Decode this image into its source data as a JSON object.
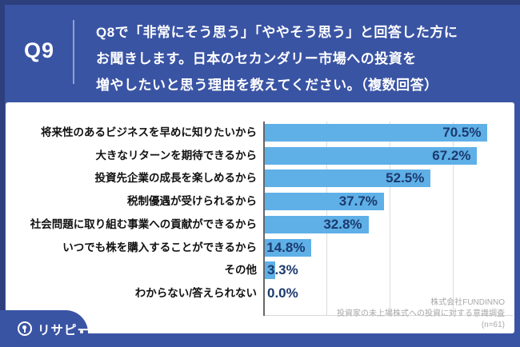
{
  "header": {
    "question_no": "Q9",
    "line1": "Q8で「非常にそう思う」「ややそう思う」と回答した方に",
    "line2": "お聞きします。日本のセカンダリー市場への投資を",
    "line3": "増やしたいと思う理由を教えてください。（複数回答）"
  },
  "chart_data": {
    "type": "bar",
    "orientation": "horizontal",
    "categories": [
      "将来性のあるビジネスを早めに知りたいから",
      "大きなリターンを期待できるから",
      "投資先企業の成長を楽しめるから",
      "税制優遇が受けられるから",
      "社会問題に取り組む事業への貢献ができるから",
      "いつでも株を購入することができるから",
      "その他",
      "わからない/答えられない"
    ],
    "values": [
      70.5,
      67.2,
      52.5,
      37.7,
      32.8,
      14.8,
      3.3,
      0.0
    ],
    "value_labels": [
      "70.5%",
      "67.2%",
      "52.5%",
      "37.7%",
      "32.8%",
      "14.8%",
      "3.3%",
      "0.0%"
    ],
    "xlim": [
      0,
      80
    ],
    "gridline_interval_pct": 20,
    "grid": "vertical-only",
    "legend": "none",
    "bar_color": "#5EB0E7",
    "value_text_color": "#1C3A6E"
  },
  "footer": {
    "source_company": "株式会社FUNDINNO",
    "source_survey": "投資家の未上場株式への投資に対する意識調査",
    "sample_size": "(n=61)"
  },
  "logo": {
    "text": "リサピー"
  },
  "colors": {
    "background_blue": "#3A54A4",
    "frame_edge_navy": "#2D3F7D",
    "panel_white": "#FFFFFF",
    "header_text": "#FFFFFF"
  }
}
